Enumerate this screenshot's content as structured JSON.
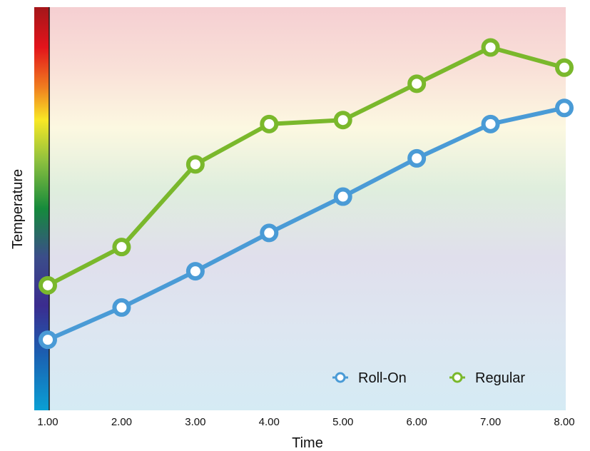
{
  "chart_data": {
    "type": "line",
    "title": "",
    "xlabel": "Time",
    "ylabel": "Temperature",
    "x": [
      1.0,
      2.0,
      3.0,
      4.0,
      5.0,
      6.0,
      7.0,
      8.0
    ],
    "x_tick_labels": [
      "1.00",
      "2.00",
      "3.00",
      "4.00",
      "5.00",
      "6.00",
      "7.00",
      "8.00"
    ],
    "xlim": [
      1.0,
      8.0
    ],
    "ylim": [
      0,
      100
    ],
    "y_ticks_shown": false,
    "grid": false,
    "legend_position": "bottom-right",
    "background": "vertical temperature gradient (red at top, yellow, green, purple, blue at bottom)",
    "series": [
      {
        "name": "Roll-On",
        "color": "#4a9bd6",
        "values": [
          17.5,
          25.5,
          34.5,
          44.0,
          53.0,
          62.5,
          71.0,
          75.0
        ]
      },
      {
        "name": "Regular",
        "color": "#7ab82c",
        "values": [
          31.0,
          40.5,
          61.0,
          71.0,
          72.0,
          81.0,
          90.0,
          85.0
        ]
      }
    ]
  }
}
